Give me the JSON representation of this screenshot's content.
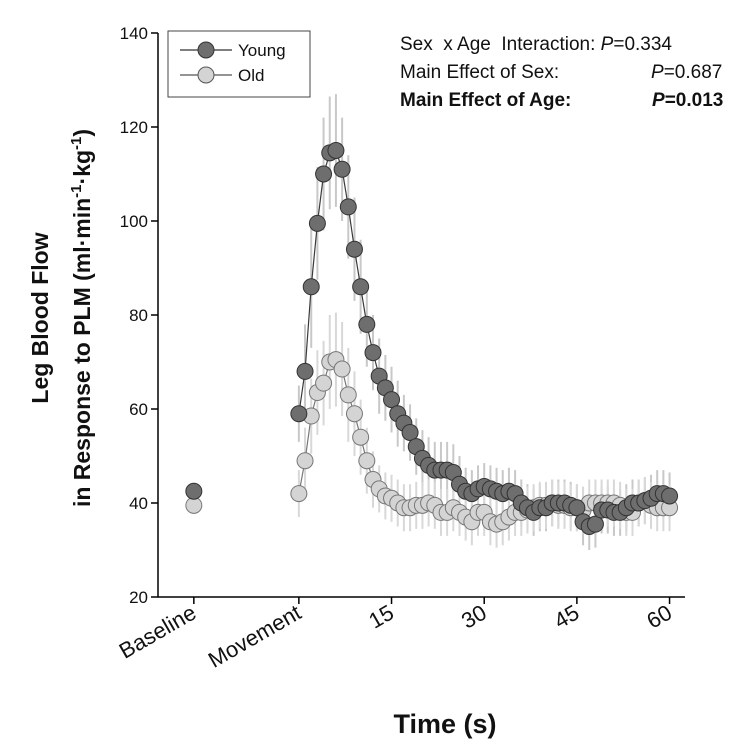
{
  "chart_data": {
    "type": "scatter",
    "xlabel": "Time (s)",
    "ylabel_line1": "Leg Blood Flow",
    "ylabel_line2_prefix": "in Response to PLM (ml·min",
    "ylabel_sup1": "-1",
    "ylabel_mid": "·kg",
    "ylabel_sup2": "-1",
    "ylabel_suffix": ")",
    "ylim": [
      20,
      140
    ],
    "yticks": [
      20,
      40,
      60,
      80,
      100,
      120,
      140
    ],
    "xticks": [
      {
        "label": "Baseline",
        "x": -17
      },
      {
        "label": "Movement",
        "x": 0
      },
      {
        "label": "15",
        "x": 15
      },
      {
        "label": "30",
        "x": 30
      },
      {
        "label": "45",
        "x": 45
      },
      {
        "label": "60",
        "x": 60
      }
    ],
    "xlim": [
      -22.8,
      62.5
    ],
    "legend_position": "top-left",
    "annotations": [
      {
        "prefix": "Sex  x Age  Interaction: ",
        "p_letter": "P",
        "p_value": "=0.334",
        "bold": false
      },
      {
        "prefix": "Main Effect of Sex:       ",
        "p_letter": "P",
        "p_value": "=0.687",
        "bold": false
      },
      {
        "prefix": "Main Effect of Age:       ",
        "p_letter": "P",
        "p_value": "=0.013",
        "bold": true
      }
    ],
    "series": [
      {
        "name": "Young",
        "color": "#6e6e6e",
        "baseline": 42.5,
        "x": [
          0,
          1,
          2,
          3,
          4,
          5,
          6,
          7,
          8,
          9,
          10,
          11,
          12,
          13,
          14,
          15,
          16,
          17,
          18,
          19,
          20,
          21,
          22,
          23,
          24,
          25,
          26,
          27,
          28,
          29,
          30,
          31,
          32,
          33,
          34,
          35,
          36,
          37,
          38,
          39,
          40,
          41,
          42,
          43,
          44,
          45,
          46,
          47,
          48,
          49,
          50,
          51,
          52,
          53,
          54,
          55,
          56,
          57,
          58,
          59,
          60
        ],
        "values": [
          59,
          68,
          86,
          99.5,
          110,
          114.5,
          115,
          111,
          103,
          94,
          86,
          78,
          72,
          67,
          64.5,
          62,
          59,
          57,
          55,
          52,
          49.5,
          48,
          47,
          47,
          47,
          46.5,
          44,
          42.5,
          42,
          43,
          43.5,
          43,
          42.5,
          42,
          42.5,
          42,
          40,
          39,
          38,
          39,
          39,
          40,
          40,
          40,
          39.5,
          39,
          36,
          35,
          35.5,
          38.5,
          38.5,
          38,
          38,
          39,
          40,
          40,
          40.5,
          41,
          42,
          42,
          41.5
        ],
        "error": [
          6,
          10,
          13,
          12,
          12,
          12,
          12,
          11,
          11,
          11,
          10,
          9,
          8,
          8,
          7,
          7,
          7,
          6,
          6,
          6,
          6,
          6,
          6,
          6,
          6,
          6,
          6,
          5,
          5,
          5,
          5,
          5,
          5,
          5,
          5,
          5,
          5,
          5,
          5,
          5,
          5,
          5,
          5,
          5,
          5,
          5,
          5,
          5,
          5,
          5,
          5,
          5,
          5,
          5,
          5,
          5,
          5,
          5,
          5,
          5,
          5
        ]
      },
      {
        "name": "Old",
        "color": "#d4d4d4",
        "baseline": 39.5,
        "x": [
          0,
          1,
          2,
          3,
          4,
          5,
          6,
          7,
          8,
          9,
          10,
          11,
          12,
          13,
          14,
          15,
          16,
          17,
          18,
          19,
          20,
          21,
          22,
          23,
          24,
          25,
          26,
          27,
          28,
          29,
          30,
          31,
          32,
          33,
          34,
          35,
          36,
          37,
          38,
          39,
          40,
          41,
          42,
          43,
          44,
          45,
          46,
          47,
          48,
          49,
          50,
          51,
          52,
          53,
          54,
          55,
          56,
          57,
          58,
          59,
          60
        ],
        "values": [
          42,
          49,
          58.5,
          63.5,
          65.5,
          70,
          70.5,
          68.5,
          63,
          59,
          54,
          49,
          45,
          43,
          41.5,
          41,
          40,
          39,
          39,
          39.5,
          39.5,
          40,
          39.5,
          38,
          38,
          39,
          38,
          37,
          36,
          38,
          38,
          36,
          35.5,
          36,
          37,
          38,
          38,
          38.5,
          39,
          39.5,
          39.5,
          40,
          39.5,
          39.5,
          39,
          39,
          38.5,
          40,
          40,
          40,
          40,
          40,
          39.5,
          38,
          38,
          40,
          40.5,
          39.5,
          39,
          39,
          39
        ],
        "error": [
          5,
          7,
          8,
          9,
          9,
          10,
          10,
          10,
          10,
          9,
          8,
          7,
          6,
          5,
          5,
          5,
          5,
          5,
          5,
          5,
          5,
          5,
          5,
          5,
          5,
          5,
          5,
          5,
          5,
          5,
          5,
          5,
          5,
          5,
          5,
          5,
          5,
          5,
          5,
          5,
          5,
          5,
          5,
          5,
          5,
          5,
          5,
          5,
          5,
          5,
          5,
          5,
          5,
          5,
          5,
          5,
          5,
          5,
          5,
          5,
          5
        ]
      }
    ]
  }
}
